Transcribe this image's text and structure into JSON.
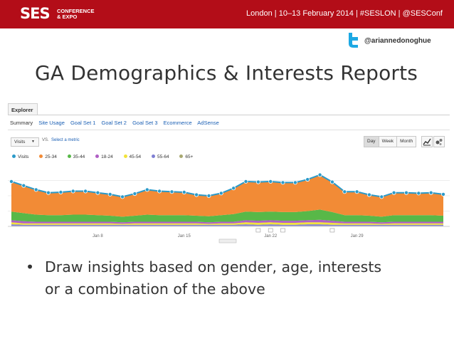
{
  "header": {
    "logo_main": "SES",
    "logo_sub_line1": "CONFERENCE",
    "logo_sub_line2": "& EXPO",
    "event_line": "London | 10–13 February 2014 | #SESLON | @SESConf",
    "twitter_icon": "twitter-bird-icon",
    "twitter_handle": "@ariannedonoghue",
    "bar_color": "#b30d18",
    "twitter_color": "#1ca8e3"
  },
  "slide": {
    "title": "GA Demographics & Interests Reports",
    "bullet_symbol": "•",
    "bullet_line1": "Draw insights based on gender, age, interests",
    "bullet_line2": "or a combination of the above"
  },
  "ga": {
    "tab": "Explorer",
    "nav": [
      "Summary",
      "Site Usage",
      "Goal Set 1",
      "Goal Set 2",
      "Goal Set 3",
      "Ecommerce",
      "AdSense"
    ],
    "metric_select": "Visits",
    "vs_label": "VS.",
    "select_metric": "Select a metric",
    "period_buttons": [
      "Day",
      "Week",
      "Month"
    ],
    "active_period": "Day",
    "chart_type_icons": [
      "line-chart-icon",
      "motion-chart-icon"
    ]
  },
  "chart_data": {
    "type": "area",
    "x_tick_labels": [
      "Jan 8",
      "Jan 15",
      "Jan 22",
      "Jan 29"
    ],
    "series": [
      {
        "name": "Visits",
        "color": "#2b9ac9",
        "values": [
          88,
          80,
          72,
          66,
          67,
          69,
          69,
          66,
          63,
          58,
          64,
          72,
          69,
          68,
          67,
          62,
          60,
          65,
          75,
          88,
          87,
          88,
          86,
          86,
          92,
          101,
          87,
          68,
          68,
          62,
          58,
          66,
          66,
          65,
          66,
          63
        ]
      },
      {
        "name": "25-34",
        "color": "#f28b36",
        "values": [
          59,
          54,
          49,
          44,
          45,
          47,
          47,
          45,
          43,
          40,
          43,
          49,
          47,
          46,
          45,
          42,
          41,
          44,
          51,
          60,
          59,
          60,
          58,
          58,
          62,
          68,
          59,
          46,
          46,
          42,
          39,
          45,
          45,
          44,
          45,
          43
        ]
      },
      {
        "name": "35-44",
        "color": "#58b848",
        "values": [
          17,
          16,
          14,
          13,
          13,
          14,
          14,
          13,
          12,
          11,
          12,
          14,
          13,
          13,
          13,
          12,
          12,
          13,
          15,
          17,
          17,
          17,
          17,
          17,
          18,
          20,
          17,
          13,
          13,
          12,
          11,
          13,
          13,
          13,
          13,
          12
        ]
      },
      {
        "name": "18-24",
        "color": "#b05fc4",
        "values": [
          4,
          4,
          3,
          3,
          3,
          3,
          3,
          3,
          3,
          3,
          3,
          3,
          3,
          3,
          3,
          3,
          3,
          3,
          3,
          4,
          4,
          4,
          4,
          4,
          4,
          5,
          4,
          3,
          3,
          3,
          3,
          3,
          3,
          3,
          3,
          3
        ]
      },
      {
        "name": "45-54",
        "color": "#f2e33a",
        "values": [
          4,
          3,
          3,
          3,
          3,
          3,
          3,
          3,
          3,
          2,
          3,
          3,
          3,
          3,
          3,
          3,
          2,
          3,
          3,
          4,
          4,
          4,
          4,
          4,
          4,
          4,
          4,
          3,
          3,
          3,
          2,
          3,
          3,
          3,
          3,
          3
        ]
      },
      {
        "name": "55-64",
        "color": "#7f7fd4",
        "values": [
          3,
          2,
          2,
          2,
          2,
          2,
          2,
          2,
          2,
          2,
          2,
          2,
          2,
          2,
          2,
          2,
          2,
          2,
          2,
          3,
          2,
          3,
          2,
          2,
          3,
          3,
          2,
          2,
          2,
          2,
          2,
          2,
          2,
          2,
          2,
          2
        ]
      },
      {
        "name": "65+",
        "color": "#a8a870",
        "values": [
          1,
          1,
          1,
          1,
          1,
          1,
          1,
          1,
          1,
          1,
          1,
          1,
          1,
          1,
          1,
          1,
          1,
          1,
          1,
          1,
          1,
          1,
          1,
          1,
          1,
          1,
          1,
          1,
          1,
          1,
          1,
          1,
          1,
          1,
          1,
          1
        ]
      }
    ],
    "y_range": [
      0,
      120
    ],
    "annotation_icon": "annotation-marker-icon",
    "grid": true
  }
}
